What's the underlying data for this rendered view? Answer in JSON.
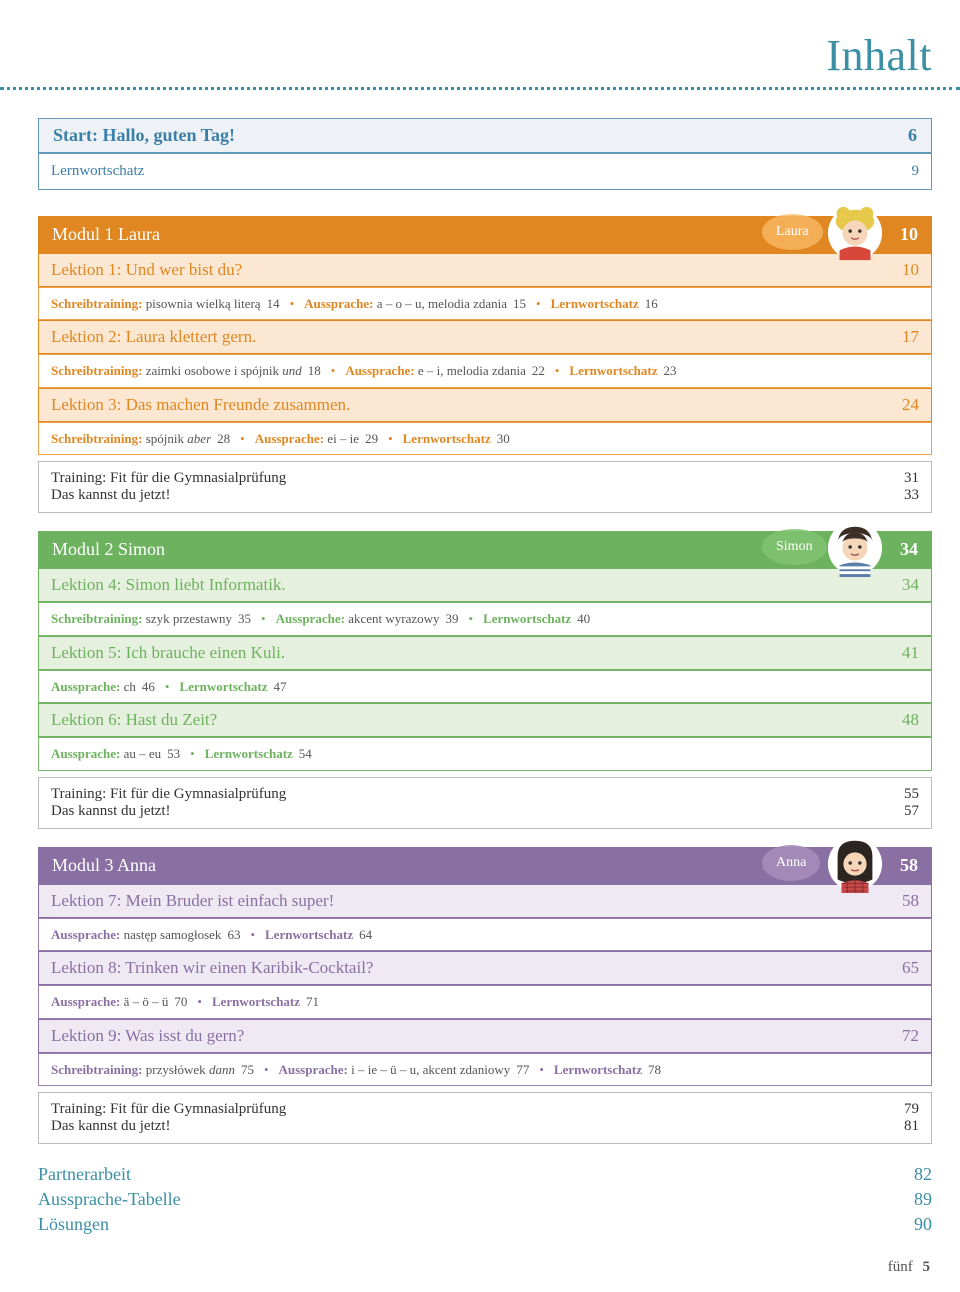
{
  "title": "Inhalt",
  "start": {
    "header": "Start: Hallo, guten Tag!",
    "page": "6",
    "sub": "Lernwortschatz",
    "subpage": "9"
  },
  "modules": [
    {
      "theme": "orange",
      "title": "Modul 1 Laura",
      "page": "10",
      "badge": "Laura",
      "avatar": "laura",
      "lessons": [
        {
          "title": "Lektion 1: Und wer bist du?",
          "page": "10",
          "segs": [
            {
              "lab": "Schreibtraining:",
              "txt": " pisownia wielką literą",
              "pg": "14"
            },
            {
              "lab": "Aussprache:",
              "txt": " a – o – u, melodia zdania",
              "pg": "15"
            },
            {
              "lab": "Lernwortschatz",
              "txt": "",
              "pg": "16"
            }
          ]
        },
        {
          "title": "Lektion 2: Laura klettert gern.",
          "page": "17",
          "segs": [
            {
              "lab": "Schreibtraining:",
              "txt": " zaimki osobowe i spójnik ",
              "it": "und",
              "pg": "18"
            },
            {
              "lab": "Aussprache:",
              "txt": " e – i, melodia zdania",
              "pg": "22"
            },
            {
              "lab": "Lernwortschatz",
              "txt": "",
              "pg": "23"
            }
          ]
        },
        {
          "title": "Lektion 3: Das machen Freunde zusammen.",
          "page": "24",
          "segs": [
            {
              "lab": "Schreibtraining:",
              "txt": " spójnik ",
              "it": "aber",
              "pg": "28"
            },
            {
              "lab": "Aussprache:",
              "txt": " ei – ie",
              "pg": "29"
            },
            {
              "lab": "Lernwortschatz",
              "txt": "",
              "pg": "30"
            }
          ]
        }
      ],
      "training": [
        {
          "label": "Training: Fit für die Gymnasialprüfung",
          "page": "31"
        },
        {
          "label": "Das kannst du jetzt!",
          "page": "33"
        }
      ]
    },
    {
      "theme": "green",
      "title": "Modul 2 Simon",
      "page": "34",
      "badge": "Simon",
      "avatar": "simon",
      "lessons": [
        {
          "title": "Lektion 4: Simon liebt Informatik.",
          "page": "34",
          "segs": [
            {
              "lab": "Schreibtraining:",
              "txt": " szyk przestawny",
              "pg": "35"
            },
            {
              "lab": "Aussprache:",
              "txt": " akcent wyrazowy",
              "pg": "39"
            },
            {
              "lab": "Lernwortschatz",
              "txt": "",
              "pg": "40"
            }
          ]
        },
        {
          "title": "Lektion 5: Ich brauche einen Kuli.",
          "page": "41",
          "segs": [
            {
              "lab": "Aussprache:",
              "txt": " ch",
              "pg": "46"
            },
            {
              "lab": "Lernwortschatz",
              "txt": "",
              "pg": "47"
            }
          ]
        },
        {
          "title": "Lektion 6: Hast du Zeit?",
          "page": "48",
          "segs": [
            {
              "lab": "Aussprache:",
              "txt": " au – eu",
              "pg": "53"
            },
            {
              "lab": "Lernwortschatz",
              "txt": "",
              "pg": "54"
            }
          ]
        }
      ],
      "training": [
        {
          "label": "Training: Fit für die Gymnasialprüfung",
          "page": "55"
        },
        {
          "label": "Das kannst du jetzt!",
          "page": "57"
        }
      ]
    },
    {
      "theme": "purple",
      "title": "Modul 3 Anna",
      "page": "58",
      "badge": "Anna",
      "avatar": "anna",
      "lessons": [
        {
          "title": "Lektion 7: Mein Bruder ist einfach super!",
          "page": "58",
          "segs": [
            {
              "lab": "Aussprache:",
              "txt": " nastęр samogłosek",
              "pg": "63"
            },
            {
              "lab": "Lernwortschatz",
              "txt": "",
              "pg": "64"
            }
          ]
        },
        {
          "title": "Lektion 8: Trinken wir einen Karibik-Cocktail?",
          "page": "65",
          "segs": [
            {
              "lab": "Aussprache:",
              "txt": " ä – ö – ü",
              "pg": "70"
            },
            {
              "lab": "Lernwortschatz",
              "txt": "",
              "pg": "71"
            }
          ]
        },
        {
          "title": "Lektion 9: Was isst du gern?",
          "page": "72",
          "segs": [
            {
              "lab": "Schreibtraining:",
              "txt": " przysłówek ",
              "it": "dann",
              "pg": "75"
            },
            {
              "lab": "Aussprache:",
              "txt": " i – ie – ü – u, akcent zdaniowy",
              "pg": "77"
            },
            {
              "lab": "Lernwortschatz",
              "txt": "",
              "pg": "78"
            }
          ]
        }
      ],
      "training": [
        {
          "label": "Training: Fit für die Gymnasialprüfung",
          "page": "79"
        },
        {
          "label": "Das kannst du jetzt!",
          "page": "81"
        }
      ]
    }
  ],
  "endlinks": [
    {
      "label": "Partnerarbeit",
      "page": "82"
    },
    {
      "label": "Aussprache-Tabelle",
      "page": "89"
    },
    {
      "label": "Lösungen",
      "page": "90"
    }
  ],
  "footer": {
    "word": "fünf",
    "page": "5"
  }
}
